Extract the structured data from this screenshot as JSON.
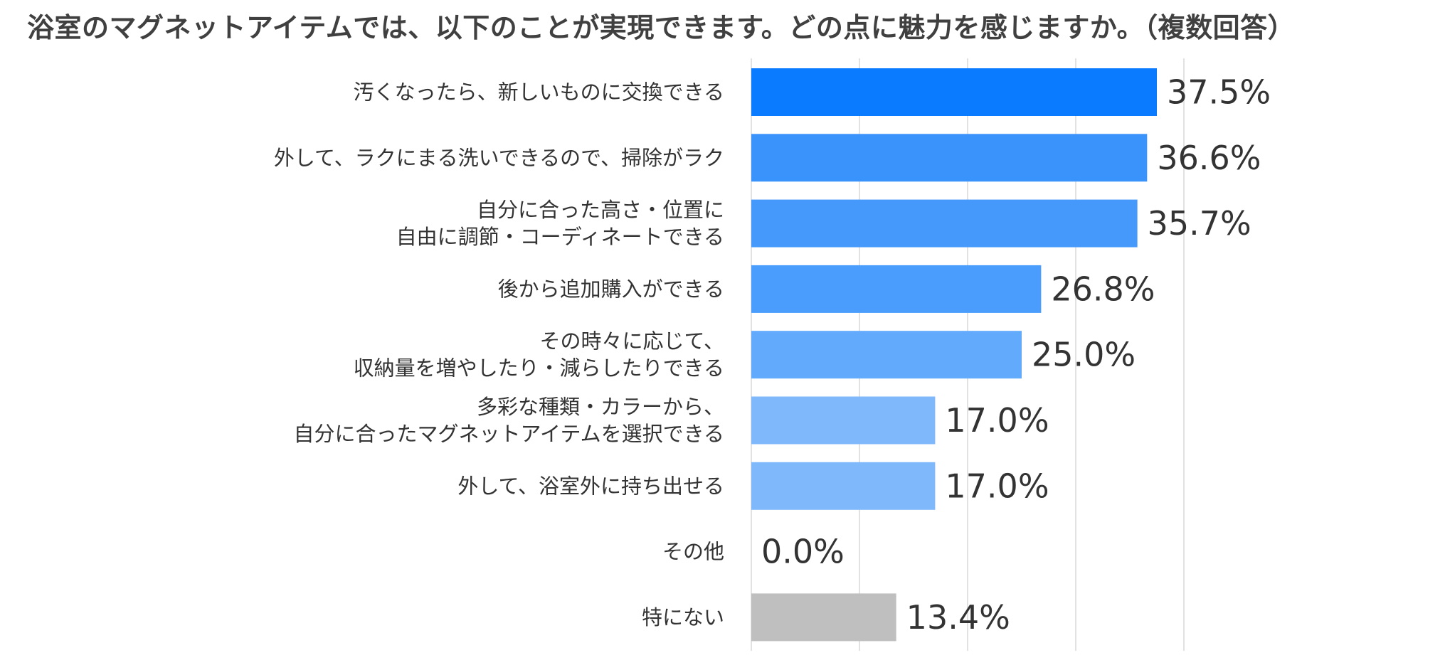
{
  "chart_data": {
    "type": "bar",
    "orientation": "horizontal",
    "title": "浴室のマグネットアイテムでは、以下のことが実現できます。どの点に魅力を感じますか。（複数回答）",
    "categories": [
      [
        "汚くなったら、新しいものに交換できる"
      ],
      [
        "外して、ラクにまる洗いできるので、掃除がラク"
      ],
      [
        "自分に合った高さ・位置に",
        "自由に調節・コーディネートできる"
      ],
      [
        "後から追加購入ができる"
      ],
      [
        "その時々に応じて、",
        "収納量を増やしたり・減らしたりできる"
      ],
      [
        "多彩な種類・カラーから、",
        "自分に合ったマグネットアイテムを選択できる"
      ],
      [
        "外して、浴室外に持ち出せる"
      ],
      [
        "その他"
      ],
      [
        "特にない"
      ]
    ],
    "values": [
      37.5,
      36.6,
      35.7,
      26.8,
      25.0,
      17.0,
      17.0,
      0.0,
      13.4
    ],
    "value_labels": [
      "37.5%",
      "36.6%",
      "35.7%",
      "26.8%",
      "25.0%",
      "17.0%",
      "17.0%",
      "0.0%",
      "13.4%"
    ],
    "bar_colors": [
      "#0a7bff",
      "#3a93fb",
      "#4499fb",
      "#4a9dfc",
      "#62aafc",
      "#80b9fb",
      "#80b9fb",
      "#80b9fb",
      "#bfbfbf"
    ],
    "xlim": [
      0,
      40
    ],
    "unit": "%",
    "grid": true,
    "legend": "none"
  }
}
